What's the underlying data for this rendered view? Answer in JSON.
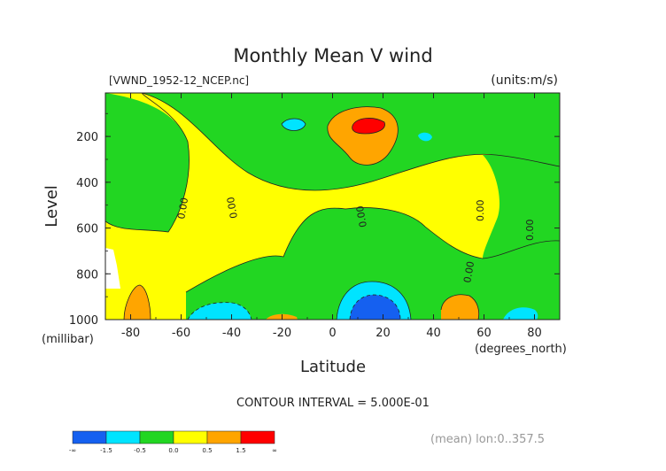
{
  "chart_data": {
    "type": "heatmap",
    "title": "Monthly Mean V wind",
    "file_label": "[VWND_1952-12_NCEP.nc]",
    "units_label": "(units:m/s)",
    "xlabel": "Latitude",
    "x_unit": "(degrees_north)",
    "ylabel": "Level",
    "y_unit": "(millibar)",
    "xlim": [
      -90,
      90
    ],
    "ylim": [
      1000,
      10
    ],
    "x_ticks": [
      "-80",
      "-60",
      "-40",
      "-20",
      "0",
      "20",
      "40",
      "60",
      "80"
    ],
    "x_tick_values": [
      -80,
      -60,
      -40,
      -20,
      0,
      20,
      40,
      60,
      80
    ],
    "y_ticks": [
      "200",
      "400",
      "600",
      "800",
      "1000"
    ],
    "y_tick_values": [
      200,
      400,
      600,
      800,
      1000
    ],
    "contour_interval_text": "CONTOUR INTERVAL = 5.000E-01",
    "mean_text": "(mean) lon:0..357.5",
    "contour_label": "0.00",
    "colorbar": {
      "colors": [
        "#1560f0",
        "#00e4ff",
        "#22d622",
        "#ffff00",
        "#ffa500",
        "#ff0000"
      ],
      "labels": [
        "-∞",
        "-1.5",
        "-0.5",
        "0.0",
        "0.5",
        "1.5",
        "∞"
      ]
    },
    "features": [
      {
        "kind": "positive",
        "center_lat": 15,
        "center_level": 150,
        "peak": 2.0
      },
      {
        "kind": "negative",
        "center_lat": 15,
        "center_level": 960,
        "peak": -2.0
      },
      {
        "kind": "negative",
        "center_lat": -45,
        "center_level": 970,
        "peak": -1.0
      },
      {
        "kind": "positive",
        "center_lat": -78,
        "center_level": 960,
        "peak": 1.0
      },
      {
        "kind": "positive",
        "center_lat": 52,
        "center_level": 950,
        "peak": 1.0
      },
      {
        "kind": "positive",
        "center_lat": -20,
        "center_level": 980,
        "peak": 1.0
      }
    ]
  }
}
